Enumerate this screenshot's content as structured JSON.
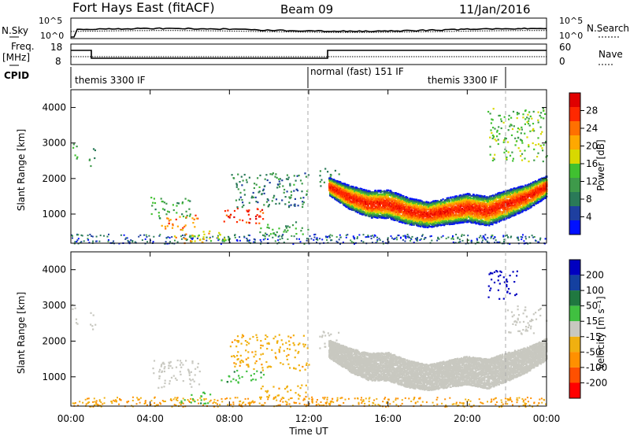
{
  "header": {
    "station": "Fort Hays East (fitACF)",
    "beam": "Beam 09",
    "date": "11/Jan/2016"
  },
  "panels": {
    "nsky_label": "N.Sky",
    "nsearch_label": "N.Search",
    "noise_ticks": [
      "10^5",
      "10^0"
    ],
    "freq_label": "Freq.",
    "freq_unit": "[MHz]",
    "freq_ticks": [
      "18",
      "8"
    ],
    "nave_ticks": [
      "60",
      "0"
    ],
    "nave_label": "Nave",
    "cpid_label": "CPID",
    "cpid_segments": [
      {
        "label": "themis 3300 IF",
        "start_hour": 0.0,
        "end_hour": 12.0
      },
      {
        "label": "normal (fast) 151 IF",
        "start_hour": 12.0,
        "end_hour": 21.9
      },
      {
        "label": "themis 3300 IF",
        "start_hour": 21.9,
        "end_hour": 24.0
      }
    ]
  },
  "colors": {
    "power": [
      "#0010ff",
      "#1e3fa0",
      "#2a7a58",
      "#3e9a4a",
      "#40c030",
      "#d8d800",
      "#ffa800",
      "#ff7000",
      "#ff2800",
      "#e00000"
    ],
    "velocity": [
      "#0000c0",
      "#1440a0",
      "#207840",
      "#40c040",
      "#c8c8c0",
      "#f0b010",
      "#ff9000",
      "#ff5000",
      "#ff0000"
    ]
  },
  "chart_data": [
    {
      "type": "heatmap",
      "ylabel": "Slant Range [km]",
      "ylim": [
        180,
        4500
      ],
      "xlim_hours": [
        0,
        24
      ],
      "yticks": [
        1000,
        2000,
        3000,
        4000
      ],
      "colorbar": {
        "label": "Power [dB]",
        "range": [
          0,
          32
        ],
        "ticks": [
          "4",
          "8",
          "12",
          "16",
          "20",
          "24",
          "28"
        ]
      },
      "scatter_regions": [
        {
          "t0": 0.0,
          "t1": 0.3,
          "r0": 2500,
          "r1": 3100,
          "v": 12
        },
        {
          "t0": 0.9,
          "t1": 1.2,
          "r0": 2300,
          "r1": 2900,
          "v": 11
        },
        {
          "t0": 4.0,
          "t1": 6.0,
          "r0": 900,
          "r1": 1500,
          "v": 12
        },
        {
          "t0": 4.5,
          "t1": 6.5,
          "r0": 600,
          "r1": 1000,
          "v": 24
        },
        {
          "t0": 5.2,
          "t1": 7.0,
          "r0": 200,
          "r1": 600,
          "v": 20
        },
        {
          "t0": 7.5,
          "t1": 9.7,
          "r0": 700,
          "r1": 1200,
          "v": 27
        },
        {
          "t0": 6.0,
          "t1": 8.0,
          "r0": 250,
          "r1": 500,
          "v": 14
        },
        {
          "t0": 8.0,
          "t1": 12.0,
          "r0": 1200,
          "r1": 2200,
          "v": 9
        },
        {
          "t0": 9.5,
          "t1": 12.0,
          "r0": 400,
          "r1": 800,
          "v": 12
        },
        {
          "t0": 12.5,
          "t1": 13.5,
          "r0": 1800,
          "r1": 2300,
          "v": 10
        },
        {
          "t0": 21.0,
          "t1": 24.0,
          "r0": 2500,
          "r1": 4000,
          "v": 14
        }
      ],
      "band": {
        "times": [
          13.0,
          14.0,
          15.0,
          16.0,
          17.0,
          18.0,
          19.0,
          20.0,
          21.0,
          22.0,
          23.0,
          24.0
        ],
        "center": [
          1800,
          1500,
          1300,
          1300,
          1100,
          1000,
          1100,
          1200,
          1100,
          1300,
          1500,
          1800
        ],
        "halfwidth": [
          250,
          330,
          380,
          400,
          380,
          360,
          380,
          400,
          420,
          400,
          350,
          300
        ],
        "peak": 28
      },
      "ground_scatter": {
        "t0": 0.0,
        "t1": 24.0,
        "r0": 180,
        "r1": 450,
        "v": 6
      }
    },
    {
      "type": "heatmap",
      "ylabel": "Slant Range [km]",
      "xlabel": "Time UT",
      "ylim": [
        180,
        4500
      ],
      "xlim_hours": [
        0,
        24
      ],
      "yticks": [
        1000,
        2000,
        3000,
        4000
      ],
      "xticks": [
        "00:00",
        "04:00",
        "08:00",
        "12:00",
        "16:00",
        "20:00",
        "00:00"
      ],
      "colorbar": {
        "label": "Velocity [m s⁻¹]",
        "range": [
          -250,
          250
        ],
        "ticks": [
          "200",
          "100",
          "50",
          "15",
          "-15",
          "-50",
          "-100",
          "-200"
        ]
      },
      "scatter_regions": [
        {
          "t0": 0.0,
          "t1": 0.3,
          "r0": 2500,
          "r1": 3100,
          "v": 0
        },
        {
          "t0": 0.9,
          "t1": 1.2,
          "r0": 2300,
          "r1": 2900,
          "v": 0
        },
        {
          "t0": 4.0,
          "t1": 6.5,
          "r0": 700,
          "r1": 1500,
          "v": 0
        },
        {
          "t0": 5.5,
          "t1": 7.0,
          "r0": 250,
          "r1": 600,
          "v": 40
        },
        {
          "t0": 7.5,
          "t1": 9.7,
          "r0": 850,
          "r1": 1200,
          "v": 45
        },
        {
          "t0": 8.0,
          "t1": 12.0,
          "r0": 1200,
          "r1": 2200,
          "v": -40
        },
        {
          "t0": 9.5,
          "t1": 12.0,
          "r0": 400,
          "r1": 800,
          "v": -40
        },
        {
          "t0": 12.5,
          "t1": 13.5,
          "r0": 1800,
          "r1": 2300,
          "v": 0
        },
        {
          "t0": 21.0,
          "t1": 22.5,
          "r0": 3200,
          "r1": 4000,
          "v": 220
        },
        {
          "t0": 22.0,
          "t1": 24.0,
          "r0": 2200,
          "r1": 3000,
          "v": 0
        }
      ],
      "band": {
        "times": [
          13.0,
          14.0,
          15.0,
          16.0,
          17.0,
          18.0,
          19.0,
          20.0,
          21.0,
          22.0,
          23.0,
          24.0
        ],
        "center": [
          1800,
          1500,
          1300,
          1300,
          1100,
          1000,
          1100,
          1200,
          1100,
          1300,
          1500,
          1800
        ],
        "halfwidth": [
          250,
          330,
          380,
          400,
          380,
          360,
          380,
          400,
          420,
          400,
          350,
          300
        ],
        "value": 0
      },
      "ground_scatter": {
        "t0": 0.0,
        "t1": 24.0,
        "r0": 180,
        "r1": 450,
        "v": -50
      }
    }
  ]
}
